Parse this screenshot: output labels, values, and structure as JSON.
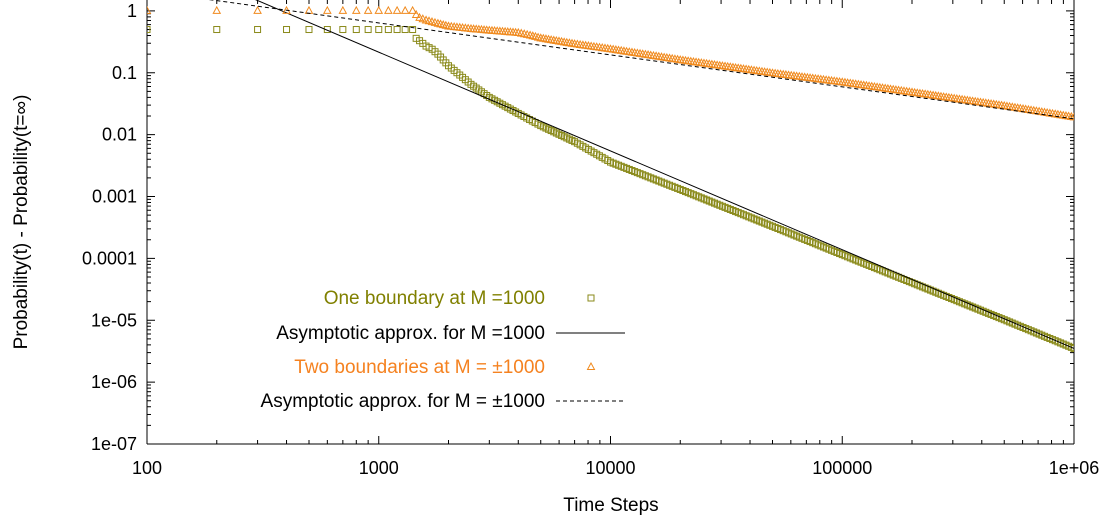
{
  "chart_data": {
    "type": "scatter",
    "xlabel": "Time Steps",
    "ylabel": "Probability(t) - Probability(t=∞)",
    "x_scale": "log",
    "y_scale": "log",
    "xlim": [
      100,
      1000000
    ],
    "ylim": [
      1e-07,
      1.5
    ],
    "x_ticks": [
      {
        "value": 100,
        "label": "100"
      },
      {
        "value": 1000,
        "label": "1000"
      },
      {
        "value": 10000,
        "label": "10000"
      },
      {
        "value": 100000,
        "label": "100000"
      },
      {
        "value": 1000000,
        "label": "1e+06"
      }
    ],
    "y_ticks": [
      {
        "value": 1,
        "label": "1"
      },
      {
        "value": 0.1,
        "label": "0.1"
      },
      {
        "value": 0.01,
        "label": "0.01"
      },
      {
        "value": 0.001,
        "label": "0.001"
      },
      {
        "value": 0.0001,
        "label": "0.0001"
      },
      {
        "value": 1e-05,
        "label": "1e-05"
      },
      {
        "value": 1e-06,
        "label": "1e-06"
      },
      {
        "value": 1e-07,
        "label": "1e-07"
      }
    ],
    "grid": false,
    "legend_position": "bottom-left",
    "series": [
      {
        "name": "One boundary at M =1000",
        "kind": "markers",
        "marker": "square",
        "color": "#8a8a1a",
        "text_color": "#808000",
        "points": [
          [
            100,
            0.5
          ],
          [
            200,
            0.5
          ],
          [
            300,
            0.5
          ],
          [
            400,
            0.5
          ],
          [
            500,
            0.5
          ],
          [
            600,
            0.5
          ],
          [
            700,
            0.5
          ],
          [
            800,
            0.5
          ],
          [
            900,
            0.5
          ],
          [
            1000,
            0.5
          ],
          [
            1100,
            0.5
          ],
          [
            1200,
            0.5
          ],
          [
            1300,
            0.5
          ],
          [
            1400,
            0.5
          ],
          [
            1450,
            0.36
          ],
          [
            1500,
            0.33
          ],
          [
            1600,
            0.27
          ],
          [
            1700,
            0.24
          ],
          [
            1800,
            0.2
          ],
          [
            2000,
            0.13
          ],
          [
            2500,
            0.065
          ],
          [
            3000,
            0.04
          ],
          [
            4000,
            0.022
          ],
          [
            5000,
            0.014
          ],
          [
            7000,
            0.0077
          ],
          [
            10000,
            0.0036
          ],
          [
            20000,
            0.0013
          ],
          [
            50000,
            0.00033
          ],
          [
            100000,
            0.000115
          ],
          [
            200000,
            4.05e-05
          ],
          [
            500000,
            1.02e-05
          ],
          [
            1000000,
            3.5e-06
          ]
        ]
      },
      {
        "name": "Asymptotic approx. for M =1000",
        "kind": "line",
        "dash": "solid",
        "color": "#000000",
        "text_color": "#000000",
        "points": [
          [
            100,
            8.5
          ],
          [
            1000000,
            3.5e-06
          ]
        ]
      },
      {
        "name": "Two boundaries at M = ±1000",
        "kind": "markers",
        "marker": "triangle",
        "color": "#f08a1e",
        "text_color": "#f58220",
        "points": [
          [
            100,
            1
          ],
          [
            200,
            1
          ],
          [
            300,
            1
          ],
          [
            400,
            1
          ],
          [
            500,
            1
          ],
          [
            600,
            1
          ],
          [
            700,
            1
          ],
          [
            800,
            1
          ],
          [
            900,
            1
          ],
          [
            1000,
            1
          ],
          [
            1100,
            1
          ],
          [
            1200,
            1
          ],
          [
            1300,
            1
          ],
          [
            1400,
            1
          ],
          [
            1450,
            0.86
          ],
          [
            1500,
            0.77
          ],
          [
            1600,
            0.7
          ],
          [
            1800,
            0.62
          ],
          [
            2000,
            0.56
          ],
          [
            2500,
            0.51
          ],
          [
            3000,
            0.48
          ],
          [
            4000,
            0.44
          ],
          [
            4500,
            0.4
          ],
          [
            5000,
            0.36
          ],
          [
            7000,
            0.29
          ],
          [
            10000,
            0.24
          ],
          [
            20000,
            0.16
          ],
          [
            50000,
            0.098
          ],
          [
            100000,
            0.07
          ],
          [
            200000,
            0.048
          ],
          [
            500000,
            0.029
          ],
          [
            1000000,
            0.019
          ]
        ]
      },
      {
        "name": "Asymptotic approx. for M = ±1000",
        "kind": "line",
        "dash": "dashed",
        "color": "#000000",
        "text_color": "#000000",
        "points": [
          [
            100,
            2.1
          ],
          [
            1000000,
            0.018
          ]
        ]
      }
    ]
  }
}
